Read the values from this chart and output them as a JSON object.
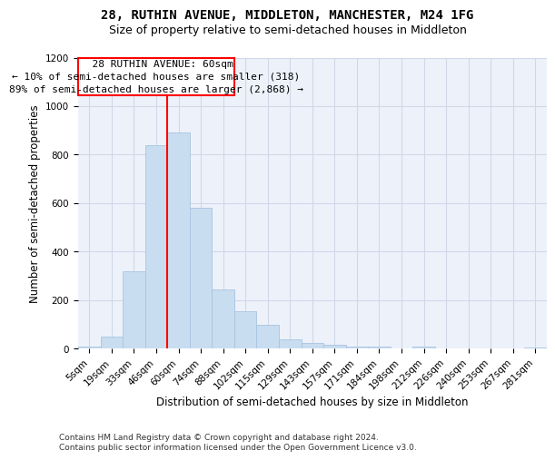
{
  "title": "28, RUTHIN AVENUE, MIDDLETON, MANCHESTER, M24 1FG",
  "subtitle": "Size of property relative to semi-detached houses in Middleton",
  "xlabel": "Distribution of semi-detached houses by size in Middleton",
  "ylabel": "Number of semi-detached properties",
  "bar_color": "#c9ddf0",
  "bar_edge_color": "#a8c4e0",
  "grid_color": "#d0d8e8",
  "bg_color": "#edf2fa",
  "annotation_line_color": "red",
  "categories": [
    "5sqm",
    "19sqm",
    "33sqm",
    "46sqm",
    "60sqm",
    "74sqm",
    "88sqm",
    "102sqm",
    "115sqm",
    "129sqm",
    "143sqm",
    "157sqm",
    "171sqm",
    "184sqm",
    "198sqm",
    "212sqm",
    "226sqm",
    "240sqm",
    "253sqm",
    "267sqm",
    "281sqm"
  ],
  "values": [
    8,
    50,
    320,
    840,
    890,
    580,
    245,
    155,
    98,
    38,
    22,
    15,
    8,
    8,
    0,
    8,
    0,
    0,
    0,
    0,
    5
  ],
  "ylim": [
    0,
    1200
  ],
  "yticks": [
    0,
    200,
    400,
    600,
    800,
    1000,
    1200
  ],
  "property_label": "28 RUTHIN AVENUE: 60sqm",
  "pct_smaller": 10,
  "count_smaller": 318,
  "pct_larger": 89,
  "count_larger": 2868,
  "vline_x_index": 4,
  "footer": "Contains HM Land Registry data © Crown copyright and database right 2024.\nContains public sector information licensed under the Open Government Licence v3.0.",
  "title_fontsize": 10,
  "subtitle_fontsize": 9,
  "label_fontsize": 8.5,
  "tick_fontsize": 7.5,
  "annotation_fontsize": 8,
  "footer_fontsize": 6.5
}
